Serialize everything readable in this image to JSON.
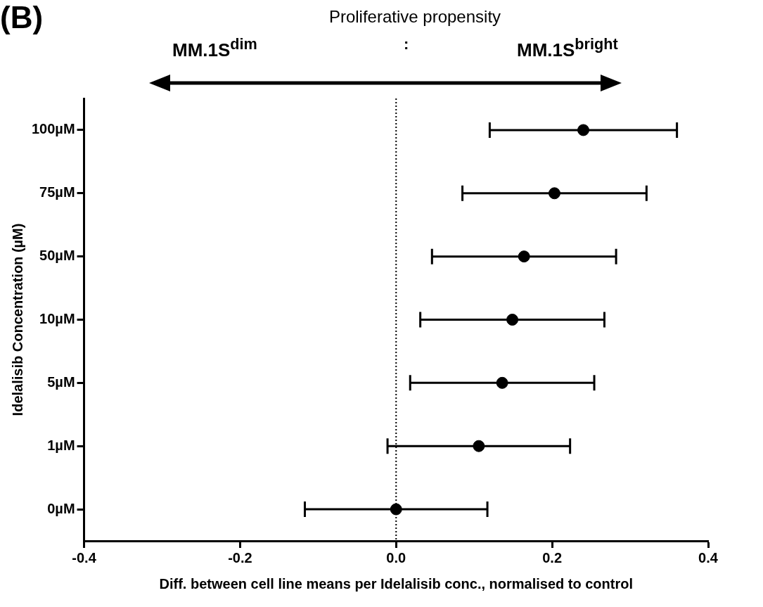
{
  "chart_data": {
    "type": "scatter",
    "orientation": "horizontal",
    "title": "Proliferative propensity",
    "xlabel": "Diff. between cell line means per Idelalisib conc., normalised to control",
    "ylabel": "Idelalisib Concentration (µM)",
    "categories": [
      "100µM",
      "75µM",
      "50µM",
      "10µM",
      "5µM",
      "1µM",
      "0µM"
    ],
    "series": [
      {
        "color": "#000000",
        "values": [
          0.24,
          0.203,
          0.164,
          0.149,
          0.136,
          0.106,
          0.0
        ],
        "errors": [
          0.12,
          0.118,
          0.118,
          0.118,
          0.118,
          0.117,
          0.117
        ]
      }
    ],
    "xlim": [
      -0.4,
      0.4
    ],
    "xticks": [
      {
        "value": -0.4,
        "label": "-0.4"
      },
      {
        "value": -0.2,
        "label": "-0.2"
      },
      {
        "value": 0,
        "label": "0.0"
      },
      {
        "value": 0.2,
        "label": "0.2"
      },
      {
        "value": 0.4,
        "label": "0.4"
      }
    ],
    "ref_lines": [
      {
        "axis": "x",
        "value": 0,
        "line_style": "dotted",
        "color": "#000000"
      }
    ],
    "marker": "circle",
    "grid": false,
    "legend": false,
    "annotations": [
      "(B)",
      "MM.1S$^{dim}$",
      ":",
      "MM.1S$^{bright}$"
    ]
  }
}
